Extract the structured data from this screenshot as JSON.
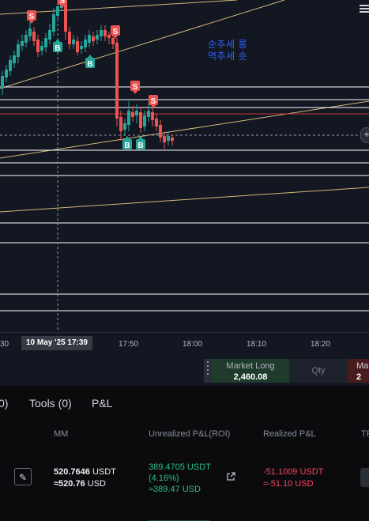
{
  "chart": {
    "annotation_line1": "순추세 롱",
    "annotation_line2": "역추세 숏",
    "markers": [
      {
        "label": "S",
        "type": "sell"
      },
      {
        "label": "S",
        "type": "sell"
      },
      {
        "label": "S",
        "type": "sell"
      },
      {
        "label": "S",
        "type": "sell"
      },
      {
        "label": "S",
        "type": "sell"
      },
      {
        "label": "B",
        "type": "buy"
      },
      {
        "label": "B",
        "type": "buy"
      },
      {
        "label": "B",
        "type": "buy"
      },
      {
        "label": "B",
        "type": "buy"
      }
    ],
    "colors": {
      "up": "#26a69a",
      "down": "#ef5350",
      "trend_line": "#d1b87a",
      "level_line": "#ffffff",
      "red_level": "#c2383b",
      "background": "#131722"
    }
  },
  "time_axis": {
    "ticks": [
      "30",
      "17:50",
      "18:00",
      "18:10",
      "18:20"
    ],
    "crosshair_label": "10 May '25   17:39"
  },
  "trade_bar": {
    "long_label": "Market Long",
    "long_price": "2,460.08",
    "qty_label": "Qty",
    "short_label": "Ma",
    "short_price": "2"
  },
  "positions_panel": {
    "tabs": [
      "0)",
      "Tools (0)",
      "P&L"
    ],
    "headers": {
      "mm": "MM",
      "unrealized": "Unrealized P&L(ROI)",
      "realized": "Realized P&L",
      "cut": "TP"
    },
    "row": {
      "mm_usdt": "520.7646",
      "mm_usdt_unit": "USDT",
      "mm_usd": "≈520.76",
      "mm_usd_unit": "USD",
      "unrealized_usdt": "389.4705 USDT",
      "unrealized_roi": "(4.16%)",
      "unrealized_usd": "≈389.47 USD",
      "realized_usdt": "-51.1009 USDT",
      "realized_usd": "≈-51.10 USD"
    }
  }
}
